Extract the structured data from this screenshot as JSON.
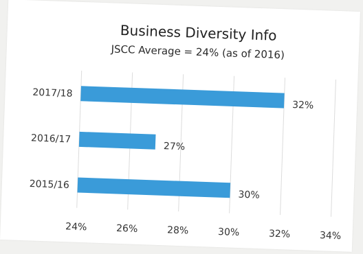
{
  "chart_data": {
    "type": "bar",
    "orientation": "horizontal",
    "title": "Business Diversity Info",
    "subtitle": "JSCC Average = 24% (as of 2016)",
    "categories": [
      "2017/18",
      "2016/17",
      "2015/16"
    ],
    "values": [
      32,
      27,
      30
    ],
    "data_labels": [
      "32%",
      "27%",
      "30%"
    ],
    "xlim": [
      24,
      34
    ],
    "xticks": [
      24,
      26,
      28,
      30,
      32,
      34
    ],
    "xtick_labels": [
      "24%",
      "26%",
      "28%",
      "30%",
      "32%",
      "34%"
    ],
    "grid": "vertical",
    "legend": "none",
    "bar_color": "#3a9bd9"
  }
}
